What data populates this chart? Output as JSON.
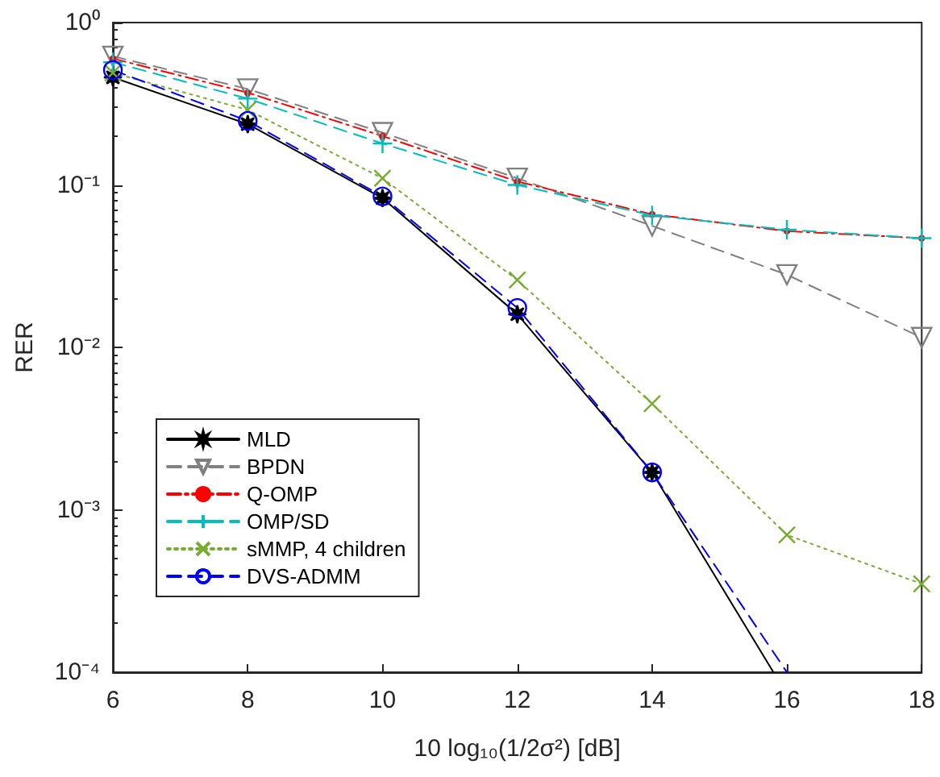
{
  "chart_data": {
    "type": "line",
    "xlabel": "10 log₁₀(1/2σ²) [dB]",
    "ylabel": "RER",
    "x": [
      6,
      8,
      10,
      12,
      14,
      16,
      18
    ],
    "xlim": [
      6,
      18
    ],
    "xticks": [
      6,
      8,
      10,
      12,
      14,
      16,
      18
    ],
    "log": "y",
    "ylim": [
      0.0001,
      1
    ],
    "yticks": [
      {
        "value": 0.0001,
        "label": "10⁻⁴"
      },
      {
        "value": 0.001,
        "label": "10⁻³"
      },
      {
        "value": 0.01,
        "label": "10⁻²"
      },
      {
        "value": 0.1,
        "label": "10⁻¹"
      },
      {
        "value": 1,
        "label": "10⁰"
      }
    ],
    "grid": false,
    "legend": "bottom left",
    "series": [
      {
        "name": "MLD",
        "color": "#000000",
        "marker": "star",
        "line_style": "solid",
        "x": [
          6,
          8,
          10,
          12,
          14,
          15.8
        ],
        "values": [
          0.46,
          0.237,
          0.083,
          0.016,
          0.0017,
          0.0001
        ]
      },
      {
        "name": "BPDN",
        "color": "#808080",
        "marker": "triangle",
        "line_style": "dashed",
        "values": [
          0.62,
          0.39,
          0.21,
          0.11,
          0.056,
          0.028,
          0.0115
        ]
      },
      {
        "name": "Q-OMP",
        "color": "#ff0000",
        "marker": "dot",
        "line_style": "dashdot",
        "values": [
          0.6,
          0.37,
          0.2,
          0.105,
          0.066,
          0.052,
          0.047
        ]
      },
      {
        "name": "OMP/SD",
        "color": "#00bfbf",
        "marker": "plus",
        "line_style": "dashed",
        "values": [
          0.57,
          0.34,
          0.18,
          0.1,
          0.065,
          0.053,
          0.047
        ]
      },
      {
        "name": "sMMP, 4 children",
        "color": "#77ac30",
        "marker": "cross",
        "line_style": "dotted",
        "values": [
          0.49,
          0.29,
          0.11,
          0.026,
          0.0045,
          0.0007,
          0.00035
        ]
      },
      {
        "name": "DVS-ADMM",
        "color": "#0000ff",
        "marker": "circle",
        "line_style": "dashed",
        "x": [
          6,
          8,
          10,
          12,
          14,
          16
        ],
        "values": [
          0.51,
          0.248,
          0.085,
          0.0175,
          0.0017,
          0.0001
        ]
      }
    ]
  }
}
